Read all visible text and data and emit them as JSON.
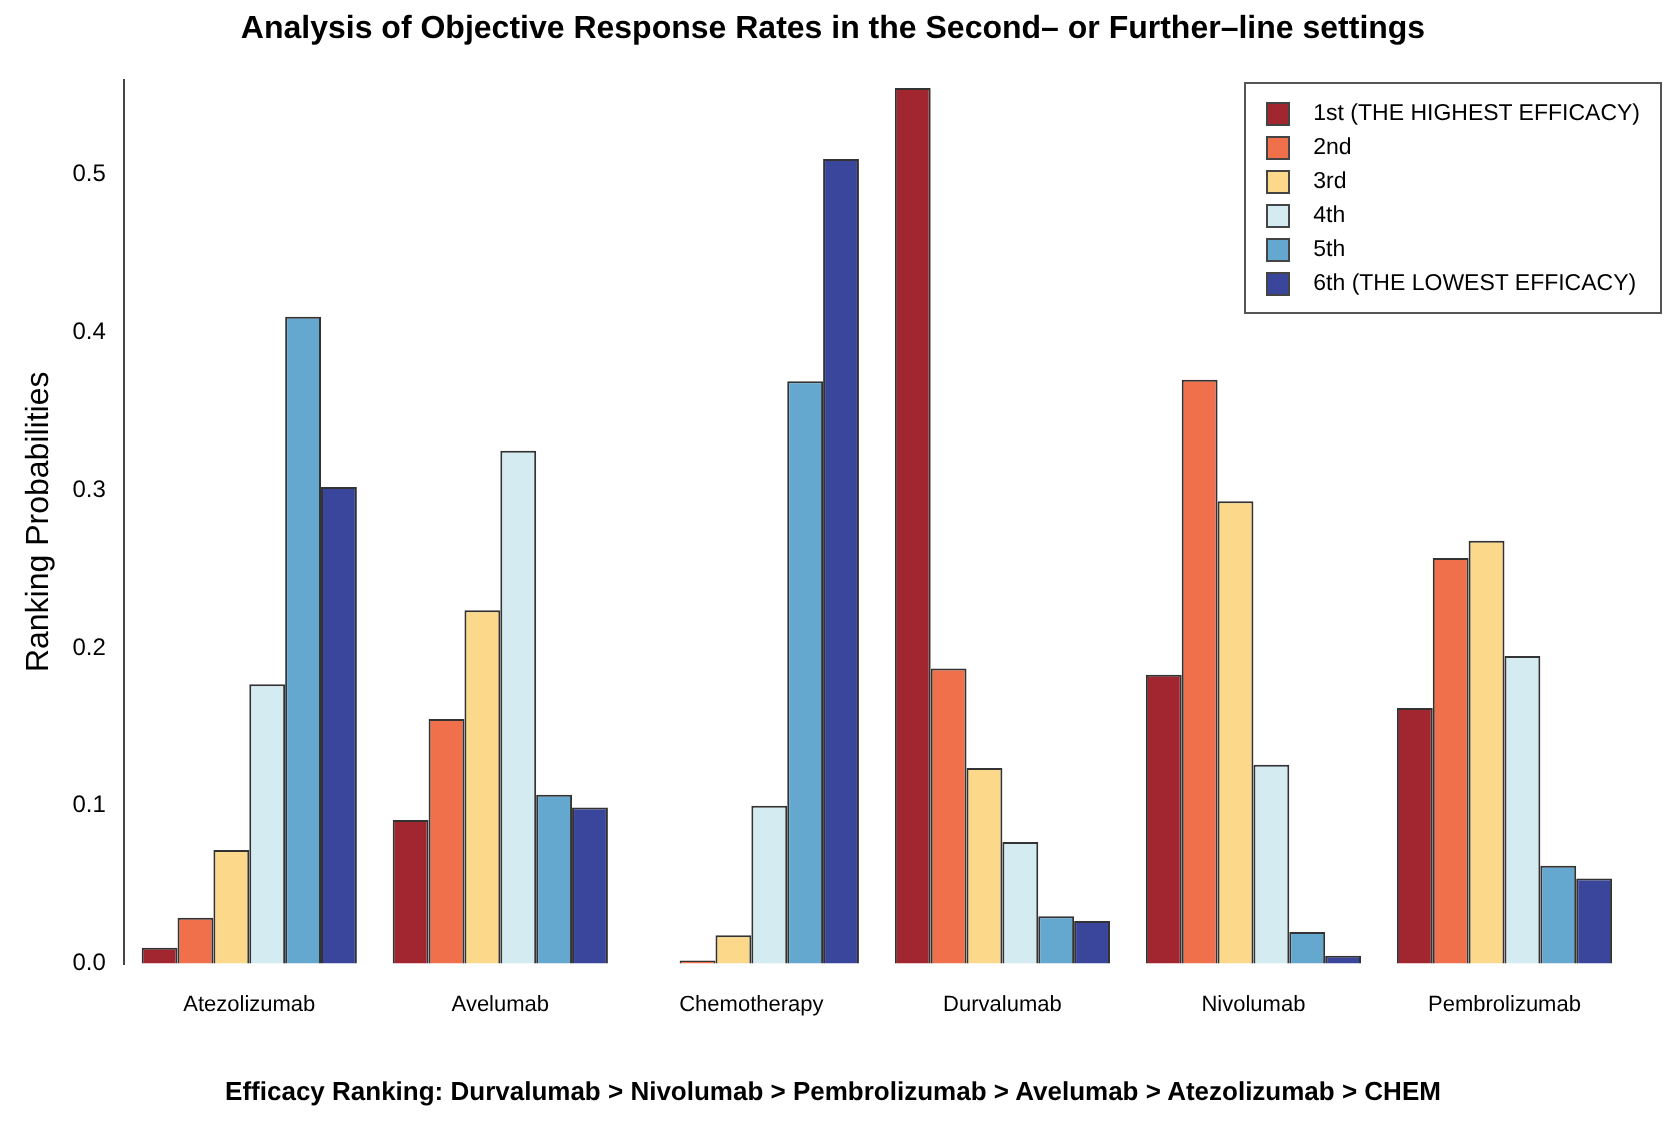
{
  "chart_data": {
    "type": "bar",
    "title": "Analysis of Objective Response Rates in the Second– or Further–line settings",
    "xlabel": "Efficacy Ranking: Durvalumab > Nivolumab > Pembrolizumab > Avelumab > Atezolizumab > CHEM",
    "ylabel": "Ranking Probabilities",
    "categories": [
      "Atezolizumab",
      "Avelumab",
      "Chemotherapy",
      "Durvalumab",
      "Nivolumab",
      "Pembrolizumab"
    ],
    "series": [
      {
        "name": "1st (THE HIGHEST EFFICACY)",
        "color": "#a2262f",
        "values": [
          0.01,
          0.091,
          0.0,
          0.555,
          0.183,
          0.162
        ]
      },
      {
        "name": "2nd",
        "color": "#f1704c",
        "values": [
          0.029,
          0.155,
          0.002,
          0.187,
          0.37,
          0.257
        ]
      },
      {
        "name": "3rd",
        "color": "#fcd98a",
        "values": [
          0.072,
          0.224,
          0.018,
          0.124,
          0.293,
          0.268
        ]
      },
      {
        "name": "4th",
        "color": "#d4ebf1",
        "values": [
          0.177,
          0.325,
          0.1,
          0.077,
          0.126,
          0.195
        ]
      },
      {
        "name": "5th",
        "color": "#65a8cf",
        "values": [
          0.41,
          0.107,
          0.369,
          0.03,
          0.02,
          0.062
        ]
      },
      {
        "name": "6th (THE LOWEST EFFICACY)",
        "color": "#3a469b",
        "values": [
          0.302,
          0.099,
          0.51,
          0.027,
          0.005,
          0.054
        ]
      }
    ],
    "ylim": [
      0,
      0.56
    ],
    "yticks": [
      {
        "value": 0,
        "label": "0.0"
      },
      0.1,
      0.2,
      0.3,
      0.4,
      0.5
    ],
    "grid": false,
    "legend": "top right"
  }
}
